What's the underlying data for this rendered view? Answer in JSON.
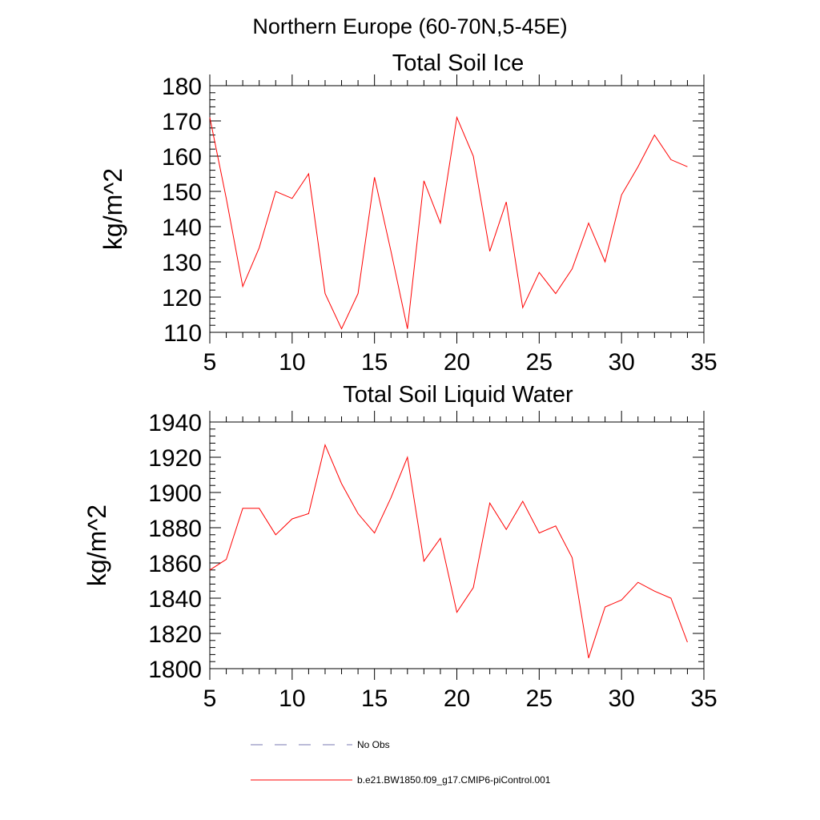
{
  "figure": {
    "suptitle": "Northern Europe (60-70N,5-45E)"
  },
  "chart_data": [
    {
      "type": "line",
      "title": "Total Soil Ice",
      "xlabel": "",
      "ylabel": "kg/m^2",
      "xlim": [
        5,
        35
      ],
      "ylim": [
        110,
        180
      ],
      "xticks": [
        5,
        10,
        15,
        20,
        25,
        30,
        35
      ],
      "yticks": [
        110,
        120,
        130,
        140,
        150,
        160,
        170,
        180
      ],
      "x": [
        5,
        6,
        7,
        8,
        9,
        10,
        11,
        12,
        13,
        14,
        15,
        16,
        17,
        18,
        19,
        20,
        21,
        22,
        23,
        24,
        25,
        26,
        27,
        28,
        29,
        30,
        31,
        32,
        33,
        34
      ],
      "series": [
        {
          "name": "b.e21.BW1850.f09_g17.CMIP6-piControl.001",
          "color": "#ff0000",
          "values": [
            171,
            148,
            123,
            134,
            150,
            148,
            155,
            121,
            111,
            121,
            154,
            133,
            111,
            153,
            141,
            171,
            160,
            133,
            147,
            117,
            127,
            121,
            128,
            141,
            130,
            149,
            157,
            166,
            159,
            157
          ]
        }
      ],
      "grid": false
    },
    {
      "type": "line",
      "title": "Total Soil Liquid Water",
      "xlabel": "",
      "ylabel": "kg/m^2",
      "xlim": [
        5,
        35
      ],
      "ylim": [
        1800,
        1940
      ],
      "xticks": [
        5,
        10,
        15,
        20,
        25,
        30,
        35
      ],
      "yticks": [
        1800,
        1820,
        1840,
        1860,
        1880,
        1900,
        1920,
        1940
      ],
      "x": [
        5,
        6,
        7,
        8,
        9,
        10,
        11,
        12,
        13,
        14,
        15,
        16,
        17,
        18,
        19,
        20,
        21,
        22,
        23,
        24,
        25,
        26,
        27,
        28,
        29,
        30,
        31,
        32,
        33,
        34
      ],
      "series": [
        {
          "name": "b.e21.BW1850.f09_g17.CMIP6-piControl.001",
          "color": "#ff0000",
          "values": [
            1856,
            1862,
            1891,
            1891,
            1876,
            1885,
            1888,
            1927,
            1905,
            1888,
            1877,
            1897,
            1920,
            1861,
            1874,
            1832,
            1846,
            1894,
            1879,
            1895,
            1877,
            1881,
            1863,
            1806,
            1835,
            1839,
            1849,
            1844,
            1840,
            1815
          ]
        }
      ],
      "grid": false
    }
  ],
  "legend": {
    "position": "bottom-left",
    "entries": [
      {
        "label": "No Obs",
        "color": "#7a7ab0",
        "style": "dashed"
      },
      {
        "label": "b.e21.BW1850.f09_g17.CMIP6-piControl.001",
        "color": "#ff0000",
        "style": "solid"
      }
    ]
  }
}
